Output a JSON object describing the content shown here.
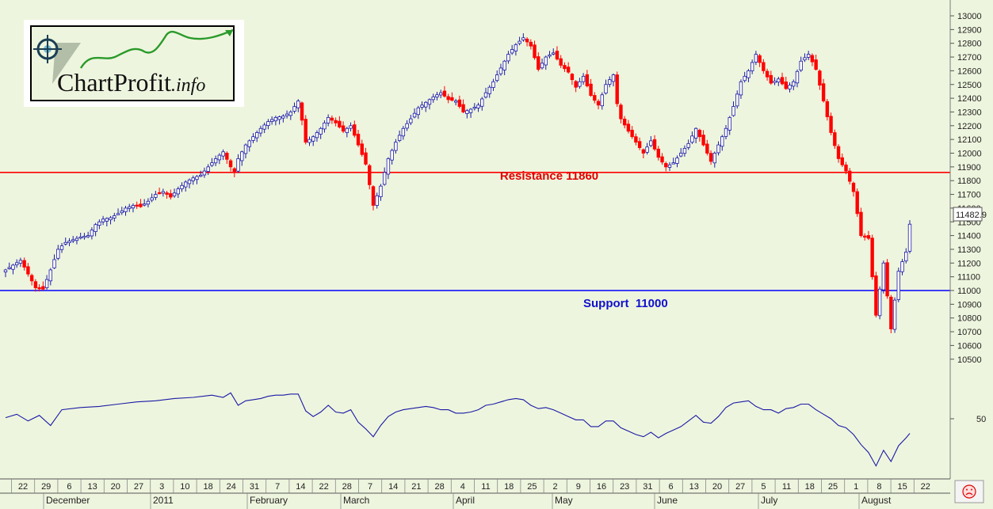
{
  "logo": {
    "name": "ChartProfit",
    "suffix": ".info"
  },
  "annotations": {
    "resistance_label": "Resistance 11860",
    "support_label": "Support  11000",
    "last_price": "11482.9"
  },
  "colors": {
    "background": "#eef5de",
    "resistance": "#ff0000",
    "support": "#0000ff",
    "up_candle": "#1a1aa6",
    "down_candle": "#ff0000",
    "indicator": "#1a1aa6"
  },
  "status_icon": "frown-face-icon",
  "chart_data": [
    {
      "type": "candlestick",
      "title": "",
      "y_ticks": [
        10500,
        10600,
        10700,
        10800,
        10900,
        11000,
        11100,
        11200,
        11300,
        11400,
        11500,
        11600,
        11700,
        11800,
        11900,
        12000,
        12100,
        12200,
        12300,
        12400,
        12500,
        12600,
        12700,
        12800,
        12900,
        13000
      ],
      "ylim": [
        10400,
        13050
      ],
      "x_tick_labels": [
        "22",
        "29",
        "6",
        "13",
        "20",
        "27",
        "3",
        "10",
        "18",
        "24",
        "31",
        "7",
        "14",
        "22",
        "28",
        "7",
        "14",
        "21",
        "28",
        "4",
        "11",
        "18",
        "25",
        "2",
        "9",
        "16",
        "23",
        "31",
        "6",
        "13",
        "20",
        "27",
        "5",
        "11",
        "18",
        "25",
        "1",
        "8",
        "15",
        "22"
      ],
      "month_labels": [
        "December",
        "2011",
        "February",
        "March",
        "April",
        "May",
        "June",
        "July",
        "August"
      ],
      "horizontal_lines": [
        {
          "name": "Resistance",
          "value": 11860
        },
        {
          "name": "Support",
          "value": 11000
        }
      ],
      "last_value": 11482.9,
      "close_path": [
        [
          0,
          11150
        ],
        [
          4,
          11220
        ],
        [
          8,
          11020
        ],
        [
          10,
          11010
        ],
        [
          12,
          11150
        ],
        [
          14,
          11300
        ],
        [
          16,
          11350
        ],
        [
          18,
          11370
        ],
        [
          20,
          11390
        ],
        [
          22,
          11400
        ],
        [
          24,
          11480
        ],
        [
          26,
          11520
        ],
        [
          28,
          11530
        ],
        [
          30,
          11560
        ],
        [
          32,
          11600
        ],
        [
          34,
          11620
        ],
        [
          36,
          11610
        ],
        [
          38,
          11650
        ],
        [
          40,
          11700
        ],
        [
          42,
          11720
        ],
        [
          44,
          11680
        ],
        [
          46,
          11740
        ],
        [
          48,
          11790
        ],
        [
          50,
          11820
        ],
        [
          52,
          11840
        ],
        [
          54,
          11900
        ],
        [
          56,
          11960
        ],
        [
          58,
          12010
        ],
        [
          60,
          11900
        ],
        [
          61,
          11860
        ],
        [
          62,
          11960
        ],
        [
          64,
          12060
        ],
        [
          66,
          12120
        ],
        [
          68,
          12180
        ],
        [
          70,
          12230
        ],
        [
          72,
          12260
        ],
        [
          74,
          12270
        ],
        [
          76,
          12300
        ],
        [
          78,
          12380
        ],
        [
          79,
          12240
        ],
        [
          80,
          12080
        ],
        [
          82,
          12120
        ],
        [
          84,
          12180
        ],
        [
          86,
          12260
        ],
        [
          88,
          12220
        ],
        [
          90,
          12160
        ],
        [
          92,
          12200
        ],
        [
          94,
          12060
        ],
        [
          96,
          11920
        ],
        [
          98,
          11620
        ],
        [
          100,
          11760
        ],
        [
          102,
          11960
        ],
        [
          104,
          12080
        ],
        [
          106,
          12180
        ],
        [
          108,
          12250
        ],
        [
          110,
          12330
        ],
        [
          112,
          12370
        ],
        [
          114,
          12410
        ],
        [
          116,
          12440
        ],
        [
          118,
          12390
        ],
        [
          120,
          12380
        ],
        [
          122,
          12300
        ],
        [
          124,
          12320
        ],
        [
          126,
          12350
        ],
        [
          128,
          12440
        ],
        [
          130,
          12520
        ],
        [
          132,
          12620
        ],
        [
          134,
          12720
        ],
        [
          136,
          12790
        ],
        [
          138,
          12840
        ],
        [
          140,
          12780
        ],
        [
          142,
          12610
        ],
        [
          144,
          12700
        ],
        [
          146,
          12730
        ],
        [
          148,
          12640
        ],
        [
          150,
          12590
        ],
        [
          152,
          12480
        ],
        [
          154,
          12560
        ],
        [
          156,
          12420
        ],
        [
          158,
          12350
        ],
        [
          160,
          12500
        ],
        [
          162,
          12570
        ],
        [
          163,
          12360
        ],
        [
          164,
          12250
        ],
        [
          166,
          12160
        ],
        [
          168,
          12080
        ],
        [
          170,
          12000
        ],
        [
          172,
          12090
        ],
        [
          174,
          11970
        ],
        [
          176,
          11900
        ],
        [
          178,
          11930
        ],
        [
          180,
          12000
        ],
        [
          182,
          12070
        ],
        [
          184,
          12180
        ],
        [
          186,
          12060
        ],
        [
          188,
          11940
        ],
        [
          190,
          12060
        ],
        [
          192,
          12180
        ],
        [
          194,
          12340
        ],
        [
          196,
          12520
        ],
        [
          198,
          12600
        ],
        [
          200,
          12720
        ],
        [
          202,
          12600
        ],
        [
          204,
          12510
        ],
        [
          206,
          12540
        ],
        [
          208,
          12470
        ],
        [
          210,
          12520
        ],
        [
          212,
          12670
        ],
        [
          214,
          12720
        ],
        [
          216,
          12610
        ],
        [
          218,
          12380
        ],
        [
          220,
          12150
        ],
        [
          222,
          11960
        ],
        [
          224,
          11870
        ],
        [
          226,
          11720
        ],
        [
          228,
          11400
        ],
        [
          230,
          11380
        ],
        [
          232,
          10820
        ],
        [
          234,
          11200
        ],
        [
          236,
          10720
        ],
        [
          238,
          11140
        ],
        [
          240,
          11280
        ],
        [
          241,
          11482.9
        ]
      ]
    },
    {
      "type": "line",
      "title": "",
      "y_ticks": [
        50
      ],
      "ylim": [
        0,
        100
      ],
      "points": [
        [
          0,
          51
        ],
        [
          3,
          54
        ],
        [
          6,
          48
        ],
        [
          9,
          53
        ],
        [
          12,
          44
        ],
        [
          15,
          58
        ],
        [
          20,
          60
        ],
        [
          25,
          61
        ],
        [
          30,
          63
        ],
        [
          35,
          65
        ],
        [
          40,
          66
        ],
        [
          45,
          68
        ],
        [
          50,
          69
        ],
        [
          55,
          71
        ],
        [
          58,
          69
        ],
        [
          60,
          73
        ],
        [
          62,
          62
        ],
        [
          64,
          66
        ],
        [
          66,
          67
        ],
        [
          68,
          68
        ],
        [
          70,
          70
        ],
        [
          72,
          71
        ],
        [
          74,
          71
        ],
        [
          76,
          72
        ],
        [
          78,
          72
        ],
        [
          80,
          57
        ],
        [
          82,
          52
        ],
        [
          84,
          56
        ],
        [
          86,
          62
        ],
        [
          88,
          56
        ],
        [
          90,
          55
        ],
        [
          92,
          58
        ],
        [
          94,
          47
        ],
        [
          96,
          41
        ],
        [
          98,
          34
        ],
        [
          100,
          44
        ],
        [
          102,
          52
        ],
        [
          104,
          56
        ],
        [
          106,
          58
        ],
        [
          108,
          59
        ],
        [
          110,
          60
        ],
        [
          112,
          61
        ],
        [
          114,
          60
        ],
        [
          116,
          58
        ],
        [
          118,
          58
        ],
        [
          120,
          55
        ],
        [
          122,
          55
        ],
        [
          124,
          56
        ],
        [
          126,
          58
        ],
        [
          128,
          62
        ],
        [
          130,
          63
        ],
        [
          132,
          65
        ],
        [
          134,
          67
        ],
        [
          136,
          68
        ],
        [
          138,
          67
        ],
        [
          140,
          62
        ],
        [
          142,
          59
        ],
        [
          144,
          60
        ],
        [
          146,
          58
        ],
        [
          148,
          55
        ],
        [
          150,
          52
        ],
        [
          152,
          49
        ],
        [
          154,
          49
        ],
        [
          156,
          43
        ],
        [
          158,
          43
        ],
        [
          160,
          48
        ],
        [
          162,
          48
        ],
        [
          164,
          42
        ],
        [
          166,
          39
        ],
        [
          168,
          36
        ],
        [
          170,
          34
        ],
        [
          172,
          38
        ],
        [
          174,
          33
        ],
        [
          176,
          37
        ],
        [
          178,
          40
        ],
        [
          180,
          43
        ],
        [
          182,
          48
        ],
        [
          184,
          53
        ],
        [
          186,
          47
        ],
        [
          188,
          46
        ],
        [
          190,
          52
        ],
        [
          192,
          60
        ],
        [
          194,
          64
        ],
        [
          196,
          65
        ],
        [
          198,
          66
        ],
        [
          200,
          61
        ],
        [
          202,
          58
        ],
        [
          204,
          58
        ],
        [
          206,
          55
        ],
        [
          208,
          59
        ],
        [
          210,
          60
        ],
        [
          212,
          63
        ],
        [
          214,
          63
        ],
        [
          216,
          58
        ],
        [
          218,
          54
        ],
        [
          220,
          50
        ],
        [
          222,
          44
        ],
        [
          224,
          42
        ],
        [
          226,
          36
        ],
        [
          228,
          27
        ],
        [
          230,
          20
        ],
        [
          232,
          8
        ],
        [
          234,
          22
        ],
        [
          236,
          12
        ],
        [
          238,
          26
        ],
        [
          240,
          33
        ],
        [
          241,
          37
        ]
      ]
    }
  ]
}
